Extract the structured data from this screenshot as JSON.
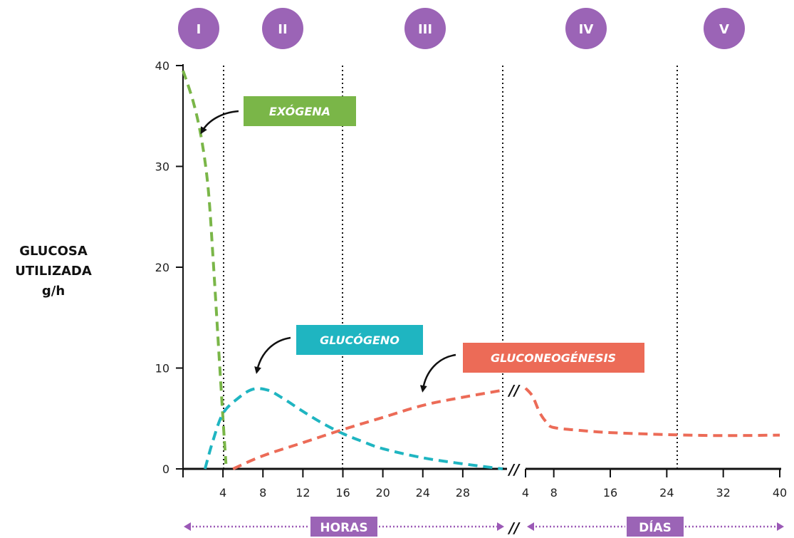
{
  "chart_data": {
    "type": "line",
    "ylabel": [
      "GLUCOSA",
      "UTILIZADA",
      "g/h"
    ],
    "ylim": [
      0,
      40
    ],
    "y_ticks": [
      "0",
      "10",
      "20",
      "30",
      "40"
    ],
    "phases": [
      "I",
      "II",
      "III",
      "IV",
      "V"
    ],
    "phase_boundaries": [
      "4 horas",
      "16 horas",
      "24 días"
    ],
    "axis_break": "//",
    "hours_axis": {
      "unit_label": "HORAS",
      "xlim": [
        0,
        32
      ],
      "ticks": [
        "4",
        "8",
        "12",
        "16",
        "20",
        "24",
        "28"
      ]
    },
    "days_axis": {
      "unit_label": "DÍAS",
      "xlim": [
        4,
        40
      ],
      "ticks": [
        "4",
        "8",
        "16",
        "24",
        "32",
        "40"
      ]
    },
    "series": [
      {
        "name": "EXÓGENA",
        "color": "#7ab648",
        "hours": [
          [
            0,
            39.5
          ],
          [
            1,
            36.5
          ],
          [
            1.8,
            33
          ],
          [
            2.5,
            28
          ],
          [
            3,
            21
          ],
          [
            3.5,
            13
          ],
          [
            4,
            5
          ],
          [
            4.3,
            0.5
          ]
        ],
        "days": []
      },
      {
        "name": "GLUCÓGENO",
        "color": "#1fb5c1",
        "hours": [
          [
            2.2,
            0
          ],
          [
            3,
            2.8
          ],
          [
            4,
            5.5
          ],
          [
            5.5,
            7
          ],
          [
            7,
            7.9
          ],
          [
            8.5,
            7.8
          ],
          [
            10,
            7
          ],
          [
            12,
            5.7
          ],
          [
            14,
            4.5
          ],
          [
            16,
            3.5
          ],
          [
            18,
            2.7
          ],
          [
            20,
            2
          ],
          [
            24,
            1.1
          ],
          [
            28,
            0.5
          ],
          [
            32,
            0
          ]
        ],
        "days": []
      },
      {
        "name": "GLUCONEOGÉNESIS",
        "color": "#ec6b57",
        "hours": [
          [
            5,
            0
          ],
          [
            8,
            1.3
          ],
          [
            12,
            2.6
          ],
          [
            16,
            3.9
          ],
          [
            20,
            5.1
          ],
          [
            24,
            6.3
          ],
          [
            28,
            7.1
          ],
          [
            32,
            7.8
          ]
        ],
        "days": [
          [
            4,
            8
          ],
          [
            5,
            7.2
          ],
          [
            6,
            5.6
          ],
          [
            7,
            4.6
          ],
          [
            8,
            4.1
          ],
          [
            12,
            3.8
          ],
          [
            16,
            3.6
          ],
          [
            24,
            3.4
          ],
          [
            32,
            3.3
          ],
          [
            40,
            3.35
          ]
        ]
      }
    ]
  }
}
